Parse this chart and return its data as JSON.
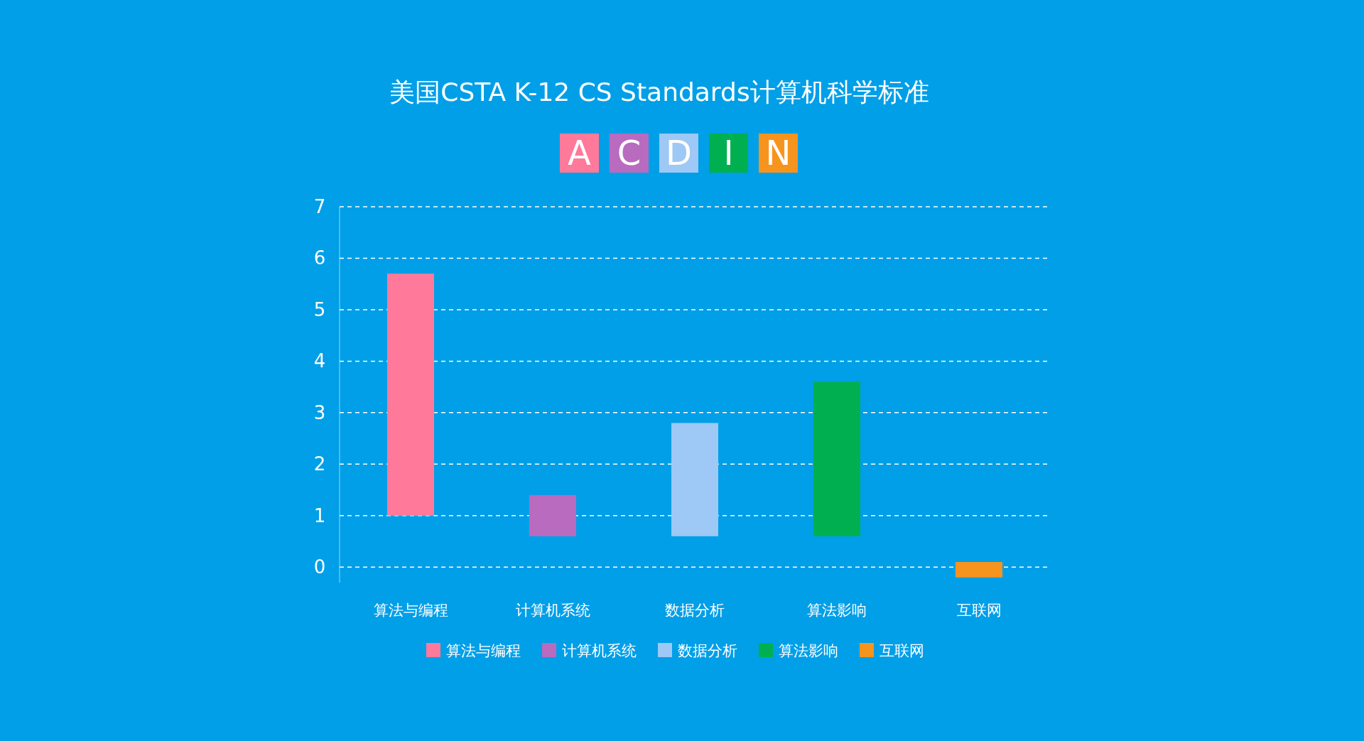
{
  "chart_data": {
    "type": "bar",
    "title": "美国CSTA K-12 CS Standards计算机科学标准",
    "annotations": [
      "A",
      "C",
      "D",
      "I",
      "N"
    ],
    "categories": [
      "算法与编程",
      "计算机系统",
      "数据分析",
      "算法影响",
      "互联网"
    ],
    "series": [
      {
        "name": "算法与编程",
        "color": "#ff7a9a",
        "values": [
          4.7,
          null,
          null,
          null,
          null
        ],
        "base": [
          1.0,
          null,
          null,
          null,
          null
        ]
      },
      {
        "name": "计算机系统",
        "color": "#b86bbf",
        "values": [
          null,
          0.8,
          null,
          null,
          null
        ],
        "base": [
          null,
          0.6,
          null,
          null,
          null
        ]
      },
      {
        "name": "数据分析",
        "color": "#9ec8f5",
        "values": [
          null,
          null,
          2.2,
          null,
          null
        ],
        "base": [
          null,
          null,
          0.6,
          null,
          null
        ]
      },
      {
        "name": "算法影响",
        "color": "#00b050",
        "values": [
          null,
          null,
          null,
          3.0,
          null
        ],
        "base": [
          null,
          null,
          null,
          0.6,
          null
        ]
      },
      {
        "name": "互联网",
        "color": "#f7941d",
        "values": [
          null,
          null,
          null,
          null,
          0.3
        ],
        "base": [
          null,
          null,
          null,
          null,
          -0.2
        ]
      }
    ],
    "ylim": [
      -0.3,
      7
    ],
    "yticks": [
      0,
      1,
      2,
      3,
      4,
      5,
      6,
      7
    ],
    "grid": "y",
    "legend": "bottom"
  }
}
